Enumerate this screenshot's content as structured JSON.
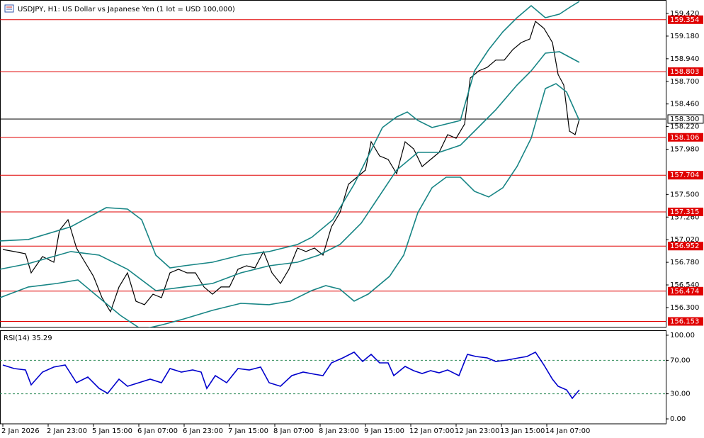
{
  "chart_data": {
    "type": "line",
    "title": "USDJPY, H1:  US Dollar vs Japanese Yen (1 lot = USD 100,000)",
    "xlim": [
      -1,
      234
    ],
    "xticks": [
      {
        "value": 0,
        "label": "2 Jan 2026"
      },
      {
        "value": 16,
        "label": "2 Jan 23:00"
      },
      {
        "value": 32,
        "label": "5 Jan 15:00"
      },
      {
        "value": 48,
        "label": "6 Jan 07:00"
      },
      {
        "value": 64,
        "label": "6 Jan 23:00"
      },
      {
        "value": 80,
        "label": "7 Jan 15:00"
      },
      {
        "value": 96,
        "label": "8 Jan 07:00"
      },
      {
        "value": 112,
        "label": "8 Jan 23:00"
      },
      {
        "value": 128,
        "label": "9 Jan 15:00"
      },
      {
        "value": 144,
        "label": "12 Jan 07:00"
      },
      {
        "value": 160,
        "label": "12 Jan 23:00"
      },
      {
        "value": 176,
        "label": "13 Jan 15:00"
      },
      {
        "value": 192,
        "label": "14 Jan 07:00"
      }
    ],
    "ylim": [
      156.089,
      159.563
    ],
    "yticks": [
      {
        "value": 159.42,
        "label": "159.420"
      },
      {
        "value": 159.18,
        "label": "159.180"
      },
      {
        "value": 158.94,
        "label": "158.940"
      },
      {
        "value": 158.7,
        "label": "158.700"
      },
      {
        "value": 158.46,
        "label": "158.460"
      },
      {
        "value": 158.22,
        "label": "158.220"
      },
      {
        "value": 157.98,
        "label": "157.980"
      },
      {
        "value": 157.5,
        "label": "157.500"
      },
      {
        "value": 157.26,
        "label": "157.260"
      },
      {
        "value": 157.02,
        "label": "157.020"
      },
      {
        "value": 156.78,
        "label": "156.780"
      },
      {
        "value": 156.54,
        "label": "156.540"
      },
      {
        "value": 156.3,
        "label": "156.300"
      }
    ],
    "levels": [
      159.354,
      158.803,
      158.106,
      157.704,
      157.315,
      156.952,
      156.474,
      156.153
    ],
    "level_color": "#e00000",
    "current_price": {
      "value": 158.3,
      "label": "158.300"
    },
    "series": [
      {
        "color": "#000000",
        "x": [
          0,
          4,
          8,
          10,
          14,
          18,
          20,
          23,
          26,
          29,
          32,
          35,
          38,
          41,
          44,
          47,
          50,
          53,
          56,
          59,
          62,
          65,
          68,
          71,
          74,
          77,
          80,
          83,
          86,
          89,
          92,
          95,
          98,
          101,
          104,
          107,
          110,
          113,
          116,
          119,
          122,
          125,
          128,
          130,
          133,
          136,
          139,
          142,
          145,
          148,
          151,
          154,
          157,
          160,
          163,
          165,
          168,
          171,
          174,
          177,
          180,
          183,
          186,
          188,
          191,
          194,
          196,
          198,
          200,
          202,
          203.5
        ],
        "values": [
          156.916,
          156.894,
          156.871,
          156.668,
          156.841,
          156.781,
          157.119,
          157.232,
          156.931,
          156.781,
          156.631,
          156.405,
          156.255,
          156.518,
          156.668,
          156.367,
          156.33,
          156.442,
          156.405,
          156.668,
          156.706,
          156.668,
          156.668,
          156.518,
          156.442,
          156.518,
          156.518,
          156.706,
          156.743,
          156.721,
          156.894,
          156.668,
          156.555,
          156.706,
          156.931,
          156.894,
          156.931,
          156.856,
          157.157,
          157.307,
          157.608,
          157.683,
          157.758,
          158.059,
          157.909,
          157.871,
          157.721,
          158.059,
          157.984,
          157.796,
          157.871,
          157.946,
          158.134,
          158.096,
          158.247,
          158.736,
          158.811,
          158.849,
          158.925,
          158.925,
          159.037,
          159.112,
          159.149,
          159.337,
          159.262,
          159.112,
          158.773,
          158.661,
          158.172,
          158.134,
          158.3
        ]
      },
      {
        "color": "#178585",
        "x": [
          -1,
          9,
          24,
          36.5,
          44,
          49,
          54,
          59,
          64,
          74,
          84,
          94,
          104,
          109,
          116.5,
          124,
          129,
          134,
          139,
          142.75,
          146.5,
          151.5,
          156.5,
          161.5,
          166.5,
          171.5,
          176.5,
          181.5,
          186.5,
          191.5,
          196.5,
          200.25,
          203.5
        ],
        "values": [
          157.007,
          157.022,
          157.157,
          157.36,
          157.345,
          157.232,
          156.856,
          156.721,
          156.743,
          156.781,
          156.856,
          156.894,
          156.969,
          157.044,
          157.232,
          157.608,
          157.909,
          158.21,
          158.322,
          158.375,
          158.285,
          158.21,
          158.247,
          158.285,
          158.811,
          159.037,
          159.225,
          159.375,
          159.503,
          159.375,
          159.413,
          159.488,
          159.548
        ]
      },
      {
        "color": "#178585",
        "x": [
          -1,
          9,
          24,
          34,
          44,
          54,
          64,
          74,
          84,
          94,
          104,
          111.5,
          119,
          126.5,
          131.5,
          139,
          146.5,
          154,
          161.5,
          166.5,
          174,
          181.5,
          186.5,
          191.5,
          196.5,
          203.5
        ],
        "values": [
          156.706,
          156.766,
          156.894,
          156.856,
          156.706,
          156.48,
          156.518,
          156.555,
          156.668,
          156.743,
          156.781,
          156.856,
          156.969,
          157.195,
          157.42,
          157.758,
          157.946,
          157.946,
          158.022,
          158.172,
          158.398,
          158.661,
          158.811,
          158.999,
          159.014,
          158.901
        ]
      },
      {
        "color": "#178585",
        "x": [
          -1,
          9,
          19,
          26.5,
          34,
          41.5,
          49,
          56.5,
          64,
          74,
          84,
          94,
          101.5,
          109,
          114,
          119,
          124,
          129,
          136.5,
          141.5,
          146.5,
          151.5,
          156.5,
          161.5,
          166.5,
          171.5,
          176.5,
          181.5,
          186.5,
          191.5,
          195.25,
          199,
          203.5
        ],
        "values": [
          156.405,
          156.518,
          156.555,
          156.593,
          156.405,
          156.217,
          156.067,
          156.119,
          156.18,
          156.27,
          156.345,
          156.33,
          156.368,
          156.48,
          156.533,
          156.495,
          156.368,
          156.443,
          156.631,
          156.856,
          157.307,
          157.571,
          157.683,
          157.683,
          157.533,
          157.473,
          157.571,
          157.796,
          158.097,
          158.623,
          158.676,
          158.586,
          158.285
        ]
      }
    ],
    "rsi": {
      "label": "RSI(14) 35.29",
      "ylim": [
        -5.9,
        105.9
      ],
      "yticks": [
        {
          "value": 100,
          "label": "100.00"
        },
        {
          "value": 70,
          "label": "70.00"
        },
        {
          "value": 30,
          "label": "30.00"
        },
        {
          "value": 0,
          "label": "0.00"
        }
      ],
      "levels": [
        70,
        30
      ],
      "level_color": "#2e8b57",
      "color": "#0000cc",
      "x": [
        0,
        4,
        8,
        10,
        14,
        18,
        22,
        26,
        30,
        34,
        37,
        41,
        44,
        48,
        52,
        56,
        59,
        63,
        67,
        70,
        72,
        75,
        79,
        83,
        87,
        91,
        94,
        98,
        102,
        106,
        110,
        113,
        116,
        120,
        124,
        127,
        130,
        133,
        136,
        138,
        142,
        145,
        148,
        151,
        154,
        157,
        161,
        164,
        167,
        171,
        174,
        178,
        182,
        185,
        188,
        191,
        194,
        196,
        199,
        201,
        203.5
      ],
      "values": [
        64.4,
        60.2,
        58.5,
        40.7,
        55.9,
        61.9,
        64.4,
        43.2,
        50,
        36.4,
        30.5,
        47.5,
        39,
        43.2,
        47.5,
        43.2,
        60.2,
        55.9,
        58.5,
        55.9,
        36.4,
        51.7,
        43.2,
        60.2,
        58.5,
        61.9,
        43.2,
        39,
        51.7,
        55.9,
        53.4,
        51.7,
        66.9,
        72.9,
        79.7,
        68.6,
        77.1,
        66.9,
        66.9,
        51.7,
        62.7,
        57.6,
        54.2,
        57.6,
        55.1,
        58.5,
        51.7,
        77.1,
        74.6,
        72.9,
        68.6,
        70.3,
        72.9,
        74.6,
        79.7,
        64.4,
        47.5,
        39,
        34.7,
        24.6,
        34.7
      ]
    }
  }
}
